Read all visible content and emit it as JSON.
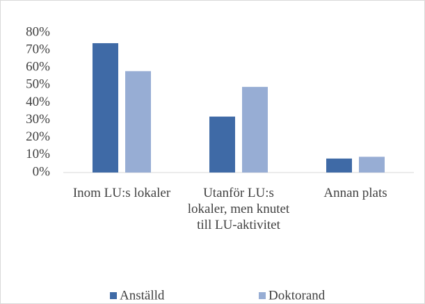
{
  "chart_data": {
    "type": "bar",
    "categories": [
      "Inom LU:s lokaler",
      "Utanför LU:s lokaler, men knutet till LU-aktivitet",
      "Annan plats"
    ],
    "series": [
      {
        "name": "Anställd",
        "color": "#3f6aa6",
        "values": [
          74,
          32,
          8
        ]
      },
      {
        "name": "Doktorand",
        "color": "#97add4",
        "values": [
          58,
          49,
          9
        ]
      }
    ],
    "ylim": [
      0,
      80
    ],
    "yticks": [
      {
        "value": 0,
        "label": "0%"
      },
      {
        "value": 10,
        "label": "10%"
      },
      {
        "value": 20,
        "label": "20%"
      },
      {
        "value": 30,
        "label": "30%"
      },
      {
        "value": 40,
        "label": "40%"
      },
      {
        "value": 50,
        "label": "50%"
      },
      {
        "value": 60,
        "label": "60%"
      },
      {
        "value": 70,
        "label": "70%"
      },
      {
        "value": 80,
        "label": "80%"
      }
    ],
    "grid": false,
    "legend": "bottom"
  }
}
